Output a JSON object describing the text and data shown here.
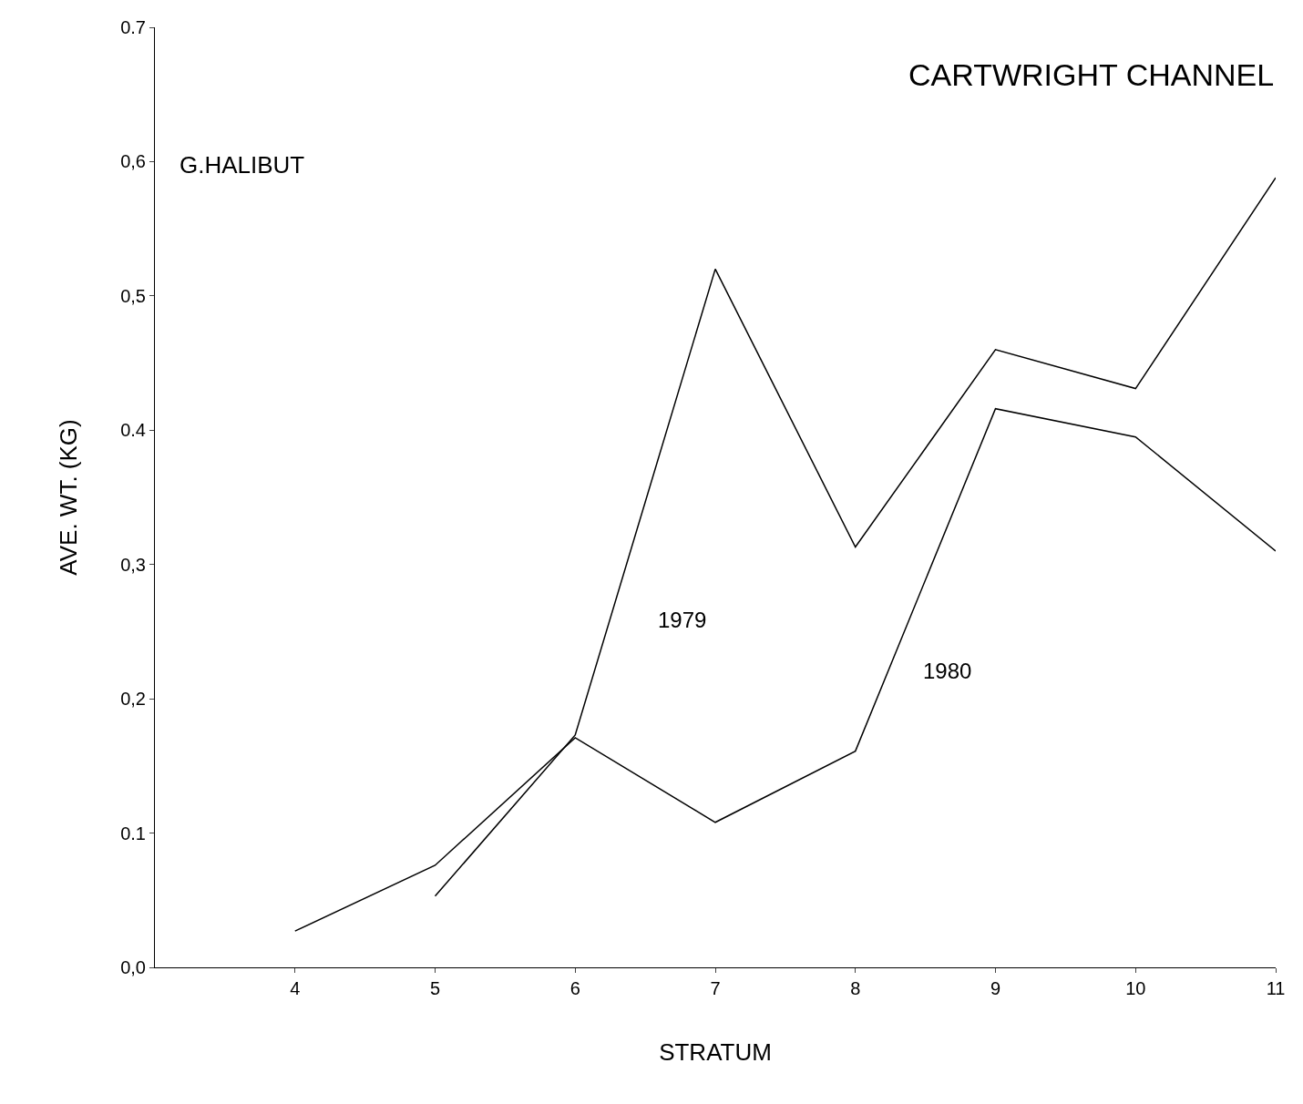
{
  "chart_data": {
    "type": "line",
    "title": "CARTWRIGHT CHANNEL",
    "subtitle": "G.HALIBUT",
    "xlabel": "STRATUM",
    "ylabel": "AVE. WT. (KG)",
    "x": [
      4,
      5,
      6,
      7,
      8,
      9,
      10,
      11
    ],
    "series": [
      {
        "color": "#000000",
        "values": [
          null,
          0.053,
          0.173,
          0.52,
          0.313,
          0.46,
          0.431,
          0.588
        ]
      },
      {
        "color": "#000000",
        "values": [
          0.027,
          0.076,
          0.171,
          0.108,
          0.161,
          0.416,
          0.395,
          0.31
        ]
      }
    ],
    "annotations": [
      "1979",
      "1980"
    ],
    "xlim": [
      3,
      11
    ],
    "xticks": [
      4,
      5,
      6,
      7,
      8,
      9,
      10,
      11
    ],
    "ylim": [
      0,
      0.7
    ],
    "yticks": [
      {
        "value": 0,
        "label": "0,0"
      },
      {
        "value": 0.1,
        "label": "0.1"
      },
      {
        "value": 0.2,
        "label": "0,2"
      },
      {
        "value": 0.3,
        "label": "0,3"
      },
      {
        "value": 0.4,
        "label": "0.4"
      },
      {
        "value": 0.5,
        "label": "0,5"
      },
      {
        "value": 0.6,
        "label": "0,6"
      },
      {
        "value": 0.7,
        "label": "0.7"
      }
    ],
    "marker": "none",
    "line_style": "solid"
  }
}
